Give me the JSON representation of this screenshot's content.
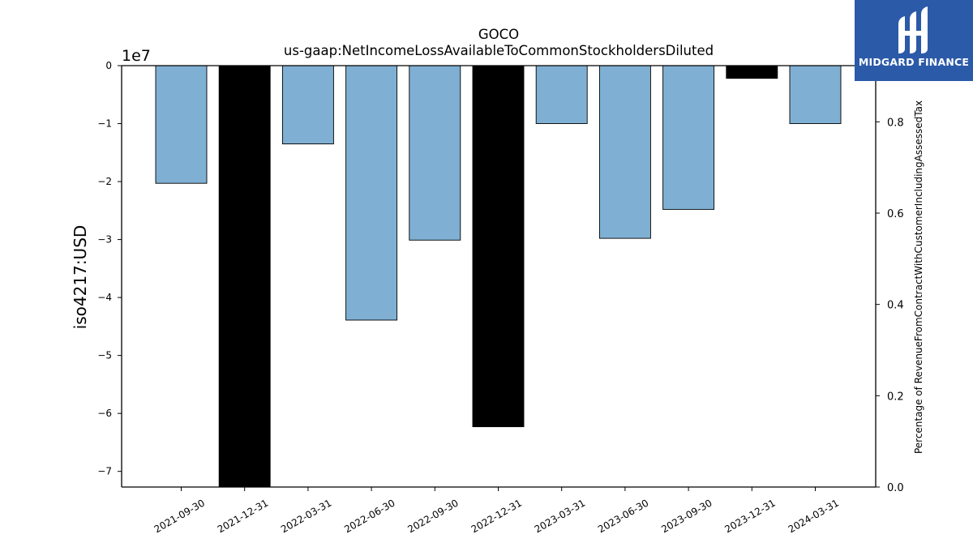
{
  "chart_data": {
    "type": "bar",
    "title": "GOCO",
    "subtitle": "us-gaap:NetIncomeLossAvailableToCommonStockholdersDiluted",
    "ylabel": "iso4217:USD",
    "y_offset_label": "1e7",
    "y2label": "Percentage of RevenueFromContractWithCustomerIncludingAssessedTax",
    "categories": [
      "2021-09-30",
      "2021-12-31",
      "2022-03-31",
      "2022-06-30",
      "2022-09-30",
      "2022-12-31",
      "2023-03-31",
      "2023-06-30",
      "2023-09-30",
      "2023-12-31",
      "2024-03-31"
    ],
    "values": [
      -20300000,
      -73000000,
      -13500000,
      -43900000,
      -30100000,
      -62300000,
      -10000000,
      -29800000,
      -24800000,
      -2200000,
      -10000000
    ],
    "bar_colors": [
      "#7fb0d3",
      "#000000",
      "#7fb0d3",
      "#7fb0d3",
      "#7fb0d3",
      "#000000",
      "#7fb0d3",
      "#7fb0d3",
      "#7fb0d3",
      "#000000",
      "#7fb0d3"
    ],
    "ylim": [
      -72700000,
      0
    ],
    "yticks": [
      0,
      -1,
      -2,
      -3,
      -4,
      -5,
      -6,
      -7
    ],
    "ytick_labels": [
      "0",
      "−1",
      "−2",
      "−3",
      "−4",
      "−5",
      "−6",
      "−7"
    ],
    "y2lim": [
      0,
      0.9231
    ],
    "y2ticks": [
      0.0,
      0.2,
      0.4,
      0.6,
      0.8
    ],
    "y2tick_labels": [
      "0.0",
      "0.2",
      "0.4",
      "0.6",
      "0.8"
    ],
    "grid": false
  },
  "logo": {
    "text": "MIDGARD FINANCE",
    "background": "#2b5aa8"
  }
}
